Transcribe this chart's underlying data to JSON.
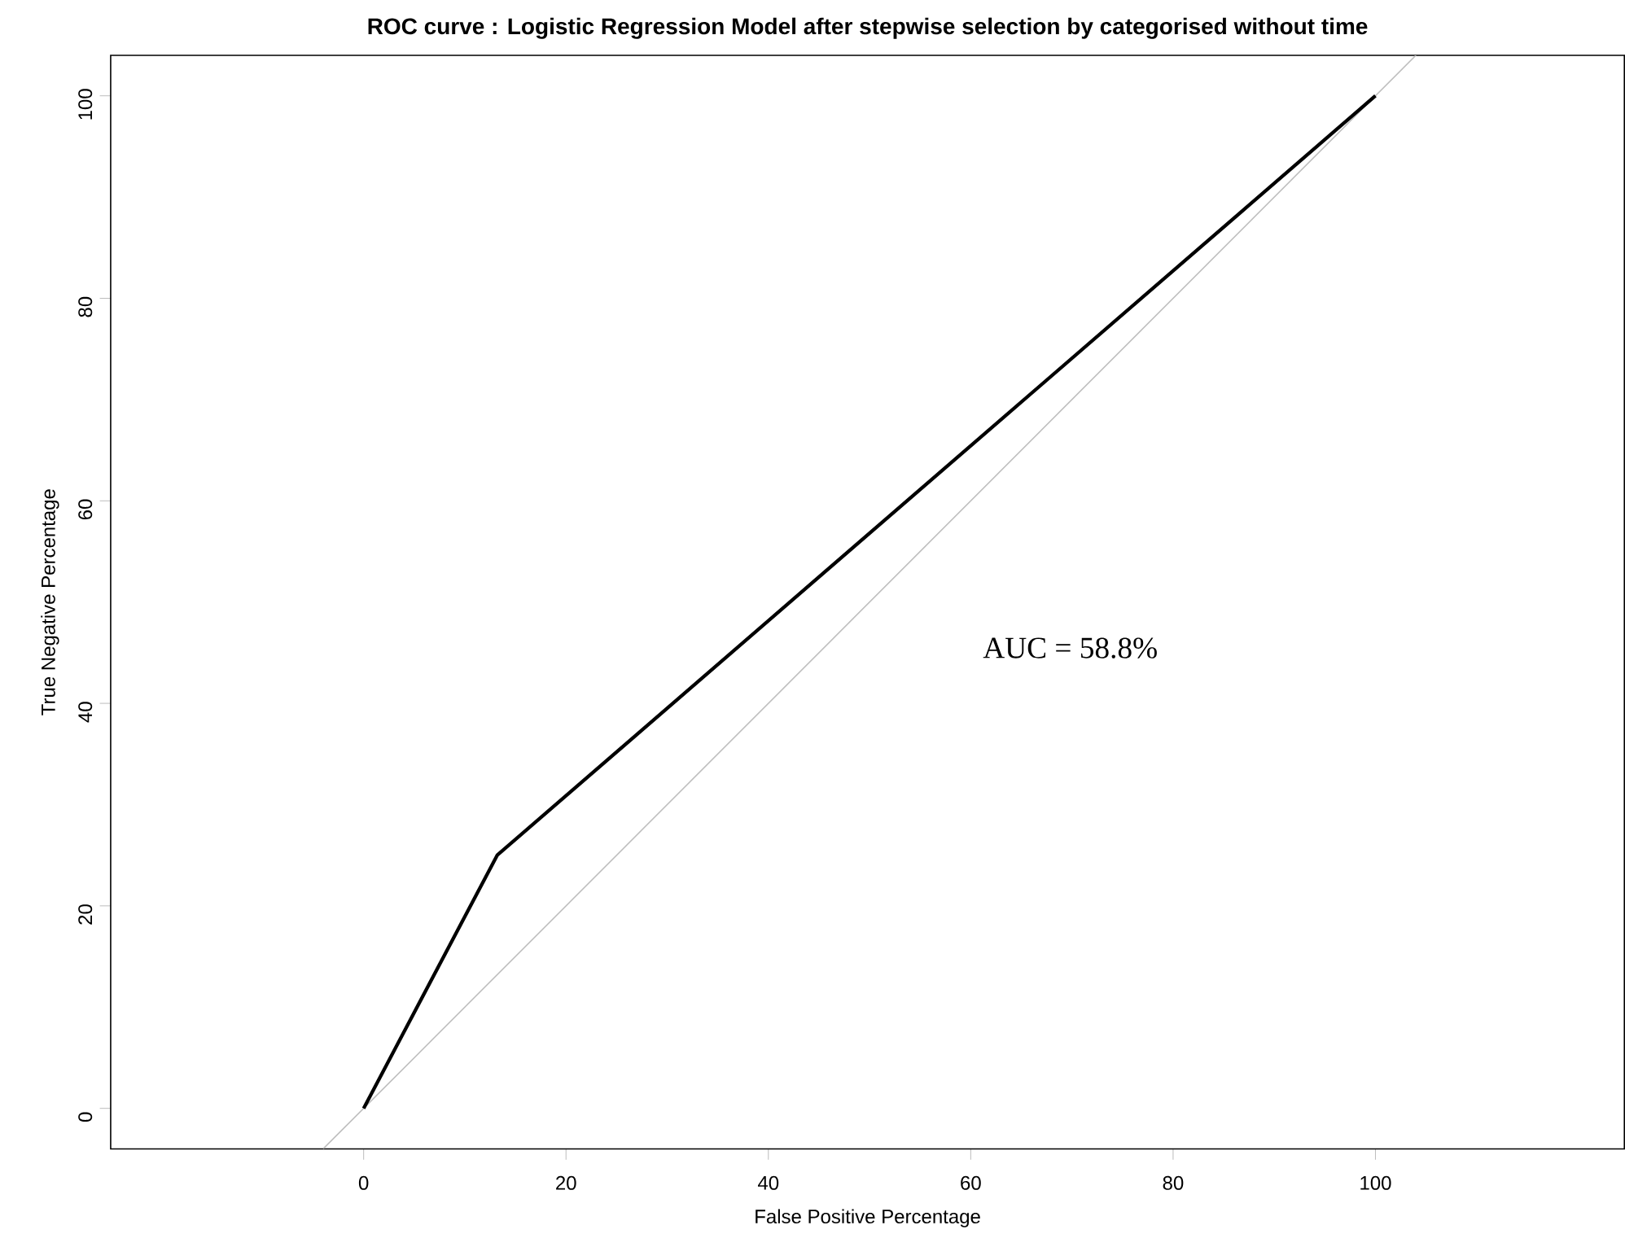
{
  "chart_data": {
    "type": "line",
    "title": "ROC curve : Logistic Regression Model after stepwise selection by categorised without time",
    "xlabel": "False Positive Percentage",
    "ylabel": "True Negative Percentage",
    "series": [
      {
        "color": "#bebebe",
        "x": [
          -4,
          104
        ],
        "values": [
          -4,
          104
        ]
      },
      {
        "color": "#000000",
        "x": [
          0,
          13.2,
          100
        ],
        "values": [
          0,
          25,
          100
        ]
      }
    ],
    "xlim": [
      -25,
      124.6
    ],
    "ylim": [
      -4,
      104
    ],
    "xticks": [
      0,
      20,
      40,
      60,
      80,
      100
    ],
    "yticks": [
      0,
      20,
      40,
      60,
      80,
      100
    ],
    "annotations": [
      "AUC = 58.8%"
    ],
    "grid": false,
    "legend": false,
    "marker": "none",
    "line_style": "solid"
  }
}
